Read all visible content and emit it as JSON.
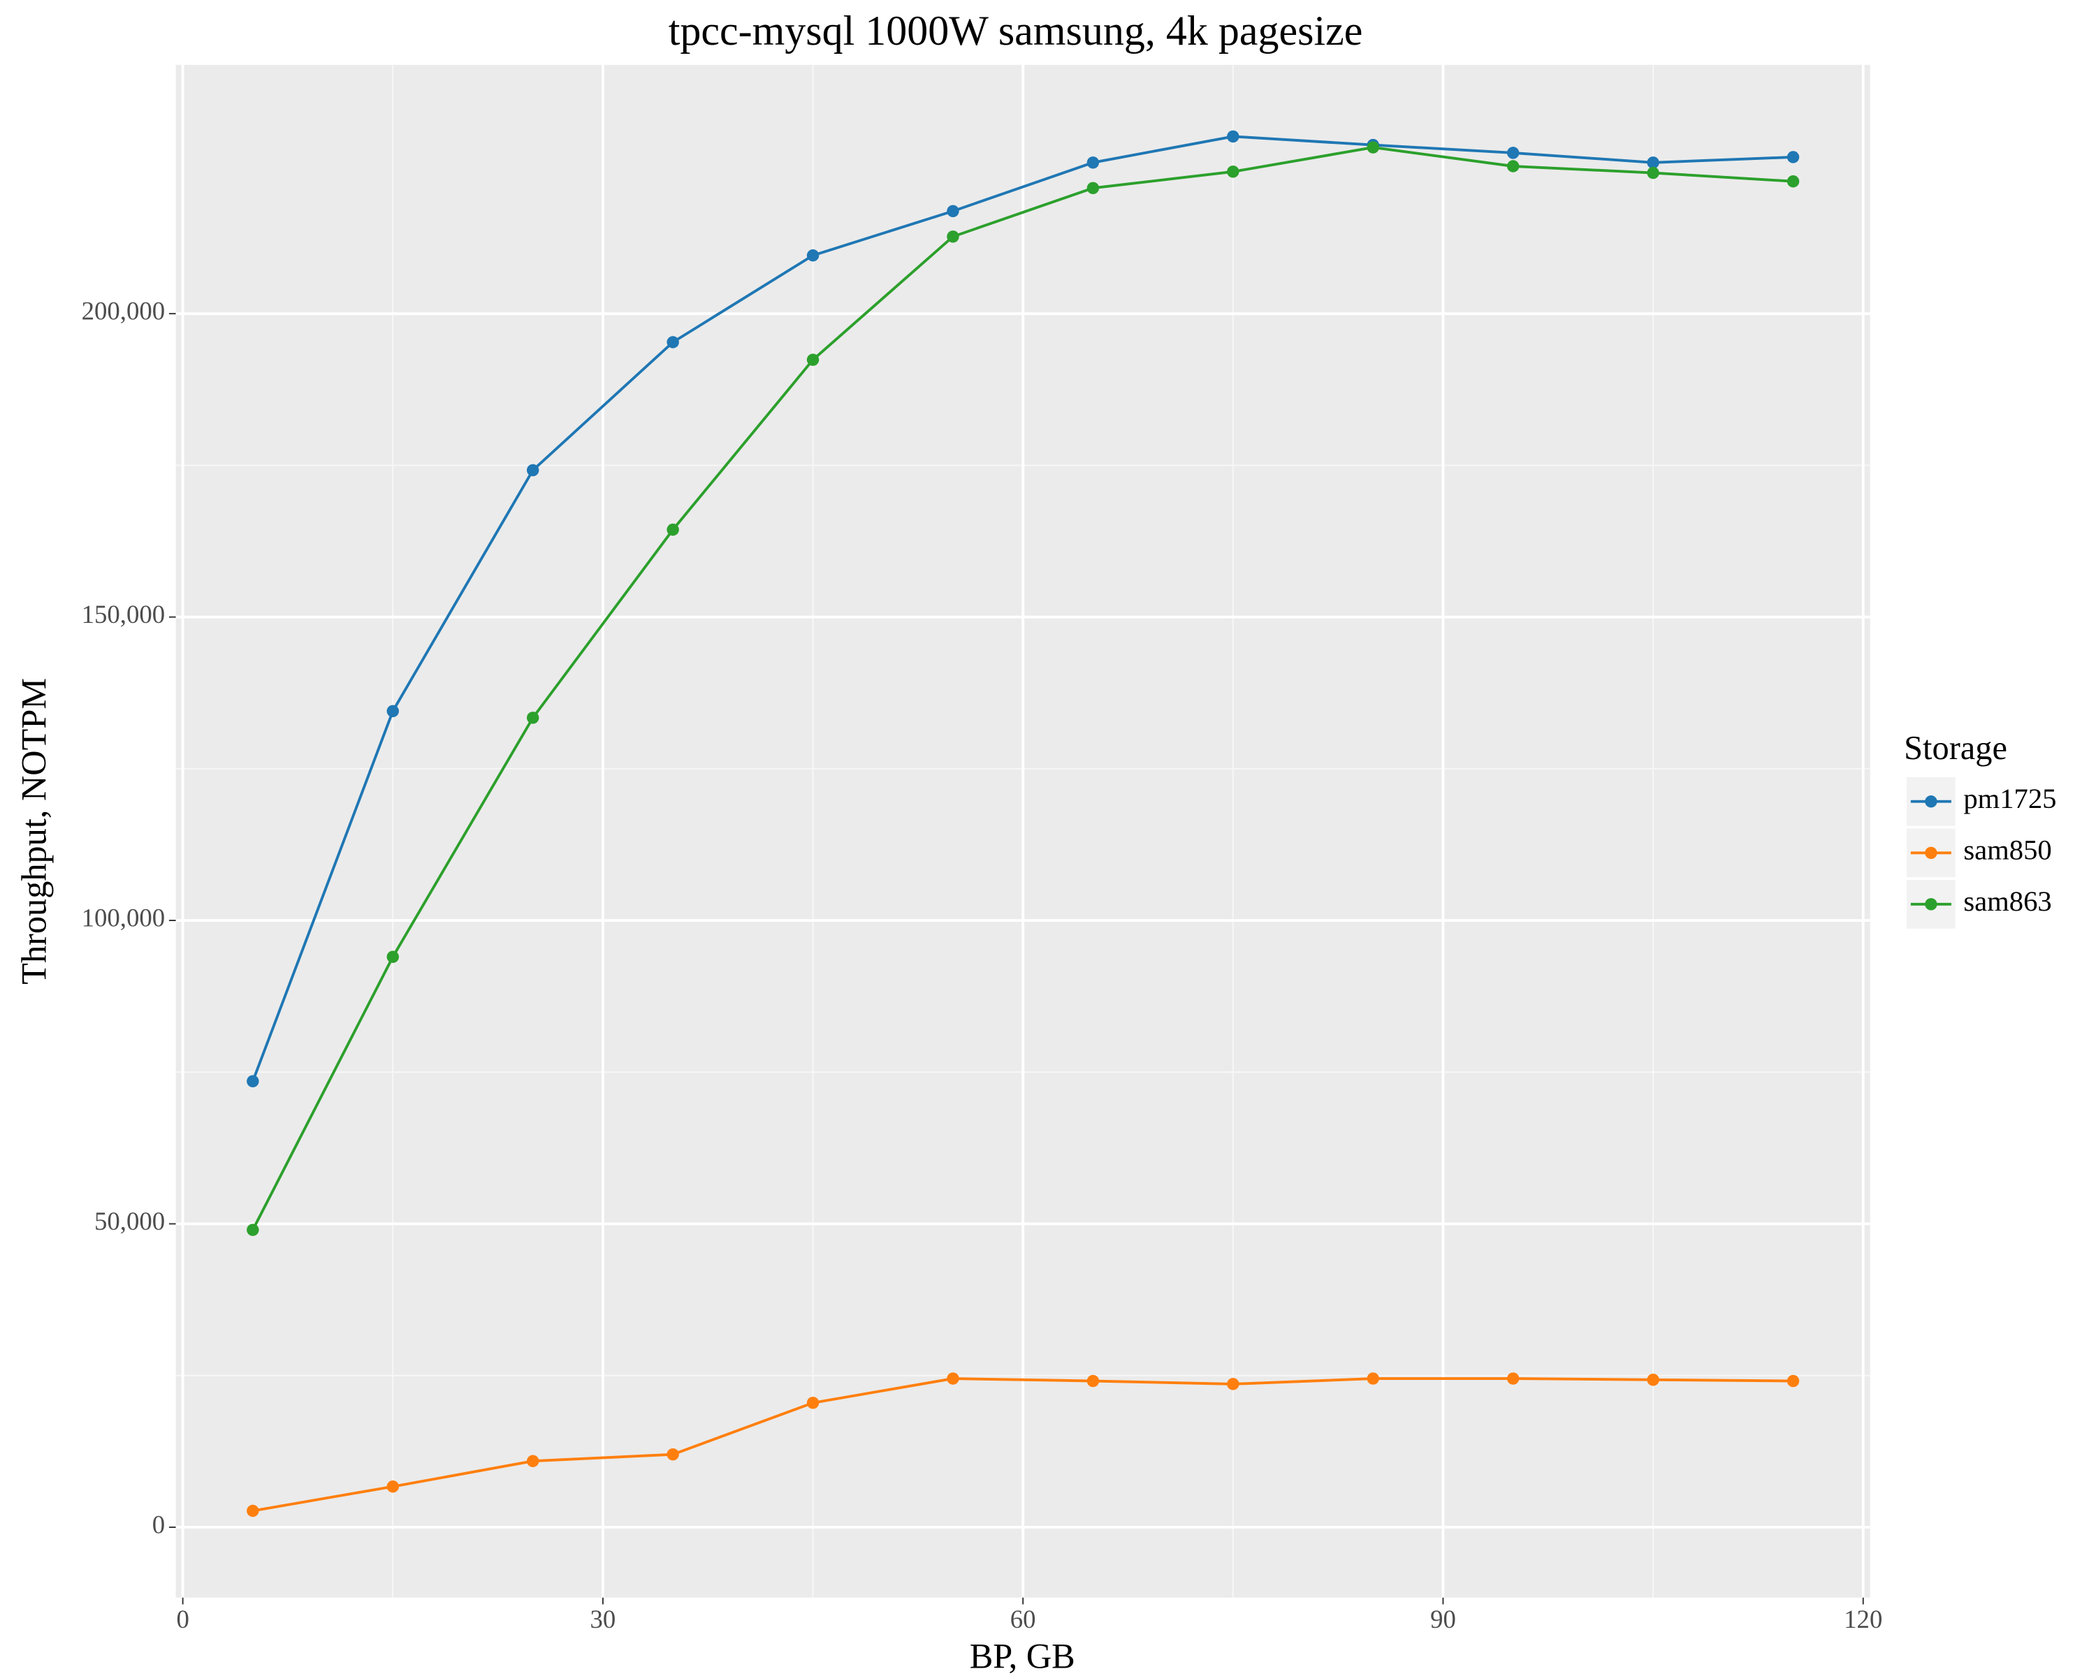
{
  "chart_data": {
    "type": "line",
    "title": "tpcc-mysql 1000W samsung, 4k pagesize",
    "x_label": "BP, GB",
    "y_label": "Throughput, NOTPM",
    "legend_title": "Storage",
    "legend_position": "right",
    "grid": true,
    "x": [
      5,
      15,
      25,
      35,
      45,
      55,
      65,
      75,
      85,
      95,
      105,
      115
    ],
    "series": [
      {
        "name": "pm1725",
        "color": "#1f77b4",
        "values": [
          73500,
          134500,
          174200,
          195300,
          209600,
          216900,
          224900,
          229200,
          227800,
          226500,
          224900,
          225800
        ]
      },
      {
        "name": "sam850",
        "color": "#ff7f0e",
        "values": [
          2700,
          6700,
          10900,
          12000,
          20500,
          24500,
          24100,
          23600,
          24500,
          24500,
          24300,
          24100
        ]
      },
      {
        "name": "sam863",
        "color": "#2ca02c",
        "values": [
          49000,
          94000,
          133400,
          164400,
          192400,
          212700,
          220700,
          223400,
          227400,
          224300,
          223200,
          221800
        ]
      }
    ],
    "xlim": [
      -0.5,
      120.5
    ],
    "xticks": [
      0,
      30,
      60,
      90,
      120
    ],
    "ylim": [
      -11600,
      241000
    ],
    "yticks": [
      0,
      {
        "value": 50000,
        "label": "50,000"
      },
      {
        "value": 100000,
        "label": "100,000"
      },
      {
        "value": 150000,
        "label": "150,000"
      },
      {
        "value": 200000,
        "label": "200,000"
      }
    ]
  }
}
